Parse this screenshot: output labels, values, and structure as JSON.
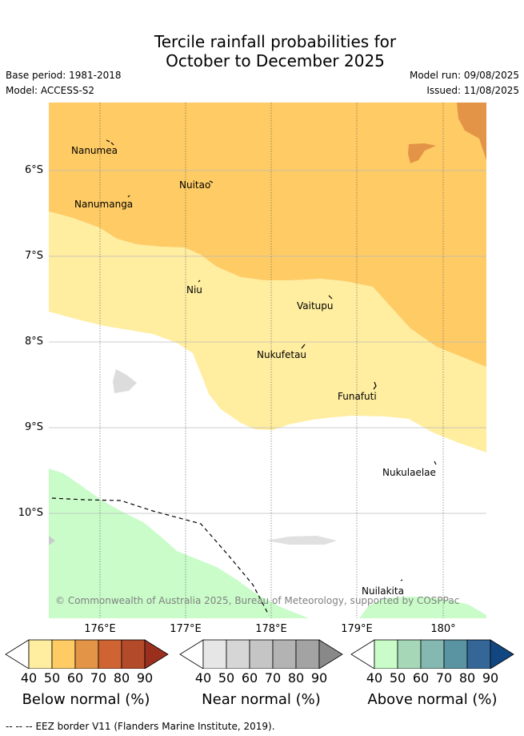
{
  "title": {
    "line1": "Tercile rainfall probabilities for",
    "line2": "October to December 2025"
  },
  "meta": {
    "base_period": "Base period: 1981-2018",
    "model": "Model: ACCESS-S2",
    "model_run": "Model run: 09/08/2025",
    "issued": "Issued: 11/08/2025"
  },
  "map": {
    "lat_labels": [
      "6°S",
      "7°S",
      "8°S",
      "9°S",
      "10°S"
    ],
    "lon_labels": [
      "176°E",
      "177°E",
      "178°E",
      "179°E",
      "180°"
    ],
    "islands": [
      {
        "name": "Nanumea"
      },
      {
        "name": "Nuitao"
      },
      {
        "name": "Nanumanga"
      },
      {
        "name": "Niu"
      },
      {
        "name": "Vaitupu"
      },
      {
        "name": "Nukufetau"
      },
      {
        "name": "Funafuti"
      },
      {
        "name": "Nukulaelae"
      },
      {
        "name": "Nuilakita"
      }
    ],
    "copyright": "© Commonwealth of Australia 2025, Bureau of Meteorology, supported by COSPPac",
    "colors": {
      "below_50": "#ffeda0",
      "below_60": "#fecb65",
      "below_70": "#e39446",
      "above_40": "#c9fcc9",
      "near_40": "#e6e6e6",
      "land_grey": "#dcdcdc"
    }
  },
  "colorbars": [
    {
      "name": "Below normal (%)",
      "ticks": [
        "40",
        "50",
        "60",
        "70",
        "80",
        "90"
      ],
      "colors": [
        "#ffeda0",
        "#fecb65",
        "#e39446",
        "#cf6432",
        "#b34a2a",
        "#9a2f1e"
      ]
    },
    {
      "name": "Near normal (%)",
      "ticks": [
        "40",
        "50",
        "60",
        "70",
        "80",
        "90"
      ],
      "colors": [
        "#e6e6e6",
        "#d6d6d6",
        "#c5c5c5",
        "#b3b3b3",
        "#a3a3a3",
        "#898989"
      ]
    },
    {
      "name": "Above normal (%)",
      "ticks": [
        "40",
        "50",
        "60",
        "70",
        "80",
        "90"
      ],
      "colors": [
        "#c9fcc9",
        "#a6d8b8",
        "#84b8b0",
        "#5a93a2",
        "#346698",
        "#124680"
      ]
    }
  ],
  "footer": {
    "legend_symbol": "-- -- --",
    "legend_text": "EEZ border V11 (Flanders Marine Institute, 2019)."
  }
}
